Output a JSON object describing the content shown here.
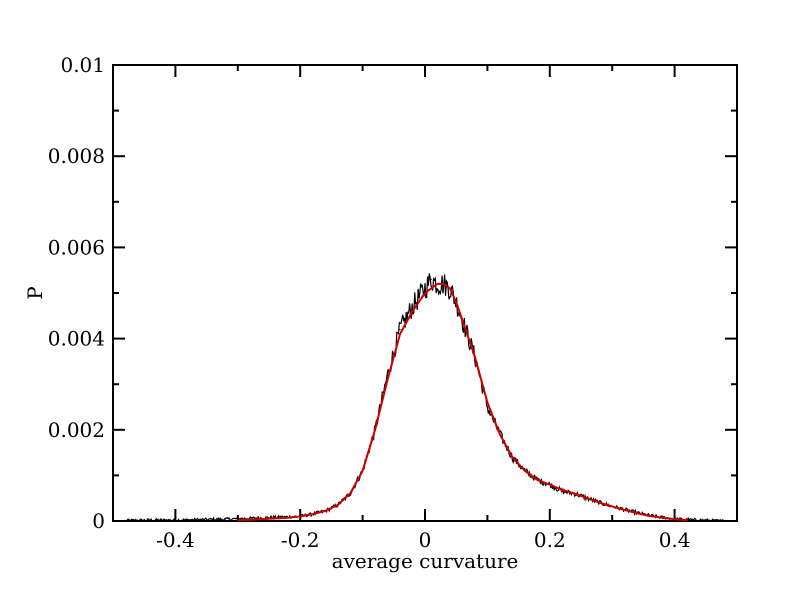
{
  "chart_data": {
    "type": "line",
    "title": "",
    "xlabel": "average curvature",
    "ylabel": "P",
    "xlim": [
      -0.5,
      0.5
    ],
    "ylim": [
      0,
      0.01
    ],
    "x_ticks": [
      -0.4,
      -0.2,
      0,
      0.2,
      0.4
    ],
    "x_tick_labels": [
      "-0.4",
      "-0.2",
      "0",
      "0.2",
      "0.4"
    ],
    "y_ticks": [
      0,
      0.002,
      0.004,
      0.006,
      0.008,
      0.01
    ],
    "y_tick_labels": [
      "0",
      "0.002",
      "0.004",
      "0.006",
      "0.008",
      "0.01"
    ],
    "grid": false,
    "legend": "none",
    "series": [
      {
        "kind": "histogram",
        "color": "#000000",
        "x": [
          -0.48,
          -0.44,
          -0.4,
          -0.36,
          -0.32,
          -0.28,
          -0.24,
          -0.2,
          -0.18,
          -0.16,
          -0.14,
          -0.12,
          -0.1,
          -0.08,
          -0.06,
          -0.04,
          -0.02,
          0.0,
          0.01,
          0.02,
          0.03,
          0.04,
          0.05,
          0.06,
          0.08,
          0.1,
          0.12,
          0.14,
          0.16,
          0.18,
          0.2,
          0.22,
          0.24,
          0.26,
          0.28,
          0.3,
          0.32,
          0.34,
          0.36,
          0.38,
          0.4,
          0.42,
          0.44,
          0.46,
          0.48
        ],
        "values": [
          1e-05,
          2e-05,
          2e-05,
          3e-05,
          4e-05,
          6e-05,
          8e-05,
          0.0001,
          0.00015,
          0.00022,
          0.00035,
          0.0006,
          0.0011,
          0.002,
          0.0032,
          0.0042,
          0.0047,
          0.0051,
          0.0053,
          0.0052,
          0.0052,
          0.0051,
          0.0048,
          0.0044,
          0.0036,
          0.0025,
          0.0019,
          0.0014,
          0.0011,
          0.0009,
          0.0008,
          0.00065,
          0.0006,
          0.0005,
          0.0004,
          0.00032,
          0.00025,
          0.00018,
          0.00012,
          8e-05,
          5e-05,
          3e-05,
          2e-05,
          1e-05,
          0.0
        ]
      },
      {
        "kind": "fit",
        "color": "#cc0000",
        "x": [
          -0.3,
          -0.26,
          -0.22,
          -0.2,
          -0.18,
          -0.16,
          -0.14,
          -0.12,
          -0.1,
          -0.08,
          -0.06,
          -0.04,
          -0.02,
          0.0,
          0.01,
          0.02,
          0.03,
          0.04,
          0.05,
          0.06,
          0.08,
          0.1,
          0.12,
          0.14,
          0.16,
          0.18,
          0.2,
          0.22,
          0.24,
          0.26,
          0.28,
          0.3,
          0.32,
          0.34,
          0.36,
          0.38,
          0.4,
          0.42
        ],
        "values": [
          2e-05,
          4e-05,
          7e-05,
          0.0001,
          0.00015,
          0.00022,
          0.00035,
          0.0006,
          0.0011,
          0.002,
          0.0031,
          0.0041,
          0.0046,
          0.005,
          0.0051,
          0.0052,
          0.0052,
          0.0051,
          0.0048,
          0.0044,
          0.0036,
          0.0026,
          0.0019,
          0.0014,
          0.0011,
          0.0009,
          0.0008,
          0.00068,
          0.0006,
          0.0005,
          0.0004,
          0.00032,
          0.00024,
          0.00017,
          0.00011,
          7e-05,
          4e-05,
          2e-05
        ]
      }
    ]
  }
}
